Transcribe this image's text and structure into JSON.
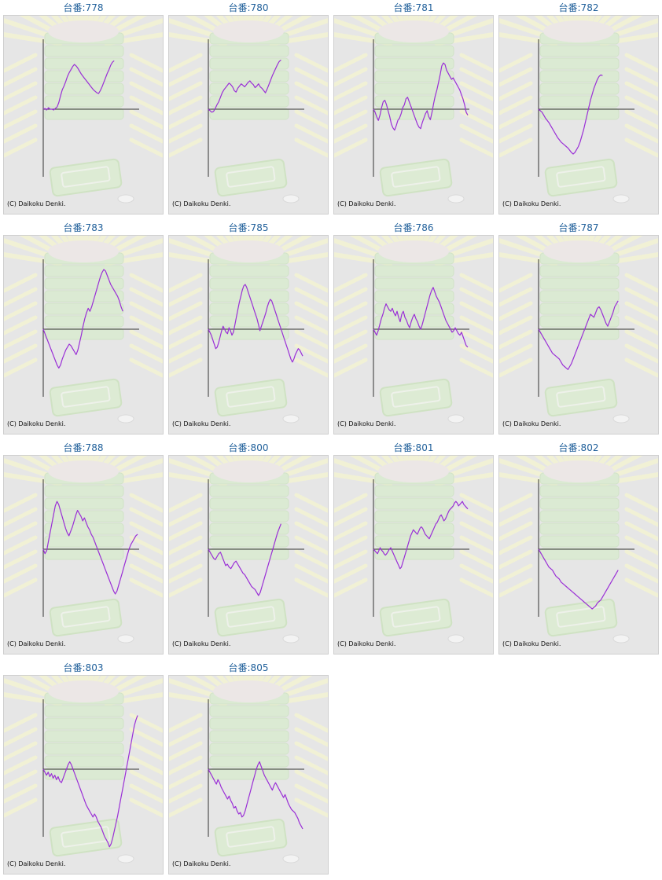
{
  "copyright": "(C) Daikoku Denki.",
  "colors": {
    "line": "#9a2fd6",
    "axis": "#333333",
    "title": "#1f5f9a",
    "panel": "#e6e6e6"
  },
  "chart_data": [
    {
      "type": "line",
      "title": "台番:778",
      "values": [
        0,
        1,
        -1,
        2,
        0,
        0,
        -1,
        1,
        3,
        9,
        18,
        26,
        31,
        37,
        44,
        49,
        53,
        57,
        60,
        58,
        55,
        51,
        47,
        44,
        41,
        38,
        35,
        32,
        29,
        26,
        24,
        22,
        21,
        25,
        30,
        36,
        42,
        48,
        53,
        59,
        63,
        65
      ]
    },
    {
      "type": "line",
      "title": "台番:780",
      "values": [
        0,
        -2,
        -4,
        -3,
        1,
        6,
        10,
        16,
        22,
        26,
        29,
        32,
        35,
        33,
        30,
        25,
        23,
        28,
        31,
        34,
        32,
        30,
        33,
        36,
        38,
        35,
        33,
        29,
        31,
        34,
        30,
        28,
        25,
        22,
        27,
        33,
        39,
        45,
        50,
        55,
        60,
        64,
        66
      ]
    },
    {
      "type": "line",
      "title": "台番:781",
      "values": [
        0,
        -4,
        -10,
        -15,
        -8,
        2,
        10,
        12,
        6,
        -2,
        -10,
        -20,
        -25,
        -28,
        -22,
        -15,
        -12,
        -6,
        2,
        6,
        14,
        16,
        10,
        4,
        -2,
        -8,
        -14,
        -20,
        -24,
        -26,
        -18,
        -12,
        -6,
        -2,
        -10,
        -14,
        -4,
        8,
        18,
        26,
        36,
        46,
        58,
        62,
        60,
        52,
        48,
        44,
        40,
        42,
        38,
        34,
        30,
        26,
        20,
        14,
        6,
        -4,
        -8
      ]
    },
    {
      "type": "line",
      "title": "台番:782",
      "values": [
        0,
        -2,
        -4,
        -8,
        -12,
        -15,
        -18,
        -22,
        -26,
        -30,
        -34,
        -38,
        -41,
        -44,
        -46,
        -48,
        -50,
        -52,
        -55,
        -58,
        -60,
        -58,
        -54,
        -50,
        -44,
        -36,
        -28,
        -18,
        -8,
        2,
        12,
        20,
        28,
        34,
        40,
        44,
        46,
        45
      ]
    },
    {
      "type": "line",
      "title": "台番:783",
      "values": [
        0,
        -6,
        -12,
        -18,
        -24,
        -30,
        -36,
        -42,
        -48,
        -52,
        -48,
        -40,
        -34,
        -28,
        -24,
        -20,
        -22,
        -26,
        -30,
        -34,
        -28,
        -18,
        -8,
        4,
        14,
        22,
        28,
        24,
        30,
        38,
        46,
        54,
        62,
        70,
        76,
        80,
        78,
        72,
        66,
        60,
        56,
        52,
        48,
        44,
        38,
        30,
        24
      ]
    },
    {
      "type": "line",
      "title": "台番:785",
      "values": [
        0,
        -4,
        -8,
        -14,
        -20,
        -26,
        -24,
        -18,
        -10,
        -2,
        4,
        0,
        -4,
        -6,
        2,
        -2,
        -8,
        -4,
        6,
        16,
        26,
        36,
        44,
        52,
        58,
        60,
        56,
        50,
        44,
        38,
        32,
        26,
        20,
        14,
        6,
        -2,
        4,
        10,
        16,
        22,
        30,
        36,
        40,
        38,
        32,
        26,
        20,
        14,
        8,
        2,
        -4,
        -10,
        -16,
        -22,
        -28,
        -34,
        -40,
        -44,
        -40,
        -34,
        -30,
        -26,
        -28,
        -32,
        -36
      ]
    },
    {
      "type": "line",
      "title": "台番:786",
      "values": [
        0,
        -4,
        -8,
        -2,
        6,
        14,
        20,
        28,
        34,
        30,
        26,
        24,
        28,
        22,
        18,
        24,
        16,
        10,
        20,
        24,
        16,
        12,
        6,
        2,
        10,
        16,
        20,
        14,
        10,
        4,
        0,
        6,
        14,
        22,
        30,
        38,
        46,
        52,
        56,
        50,
        44,
        40,
        36,
        30,
        24,
        18,
        12,
        8,
        4,
        0,
        -4,
        -2,
        2,
        -2,
        -6,
        -8,
        -4,
        -10,
        -16,
        -22,
        -24
      ]
    },
    {
      "type": "line",
      "title": "台番:787",
      "values": [
        0,
        -4,
        -8,
        -12,
        -16,
        -20,
        -24,
        -28,
        -32,
        -34,
        -36,
        -38,
        -40,
        -44,
        -48,
        -50,
        -52,
        -54,
        -50,
        -46,
        -40,
        -34,
        -28,
        -22,
        -16,
        -10,
        -4,
        2,
        8,
        14,
        20,
        18,
        16,
        22,
        28,
        30,
        26,
        20,
        14,
        8,
        4,
        10,
        16,
        22,
        30,
        34,
        38
      ]
    },
    {
      "type": "line",
      "title": "台番:788",
      "values": [
        0,
        -6,
        -2,
        10,
        22,
        34,
        46,
        58,
        64,
        60,
        52,
        44,
        36,
        28,
        22,
        18,
        24,
        30,
        38,
        46,
        52,
        48,
        44,
        38,
        42,
        36,
        30,
        26,
        20,
        16,
        10,
        4,
        -2,
        -8,
        -14,
        -20,
        -26,
        -32,
        -38,
        -44,
        -50,
        -56,
        -60,
        -56,
        -48,
        -40,
        -32,
        -24,
        -16,
        -8,
        0,
        6,
        10,
        14,
        18,
        20
      ]
    },
    {
      "type": "line",
      "title": "台番:800",
      "values": [
        0,
        -4,
        -8,
        -12,
        -14,
        -10,
        -6,
        -4,
        -10,
        -16,
        -22,
        -20,
        -24,
        -26,
        -22,
        -18,
        -16,
        -20,
        -24,
        -28,
        -32,
        -34,
        -38,
        -42,
        -46,
        -50,
        -52,
        -54,
        -58,
        -62,
        -58,
        -50,
        -42,
        -34,
        -26,
        -18,
        -10,
        -2,
        6,
        14,
        22,
        28,
        34
      ]
    },
    {
      "type": "line",
      "title": "台番:801",
      "values": [
        0,
        -2,
        -4,
        -6,
        -2,
        2,
        -1,
        -3,
        -6,
        -8,
        -6,
        -3,
        0,
        2,
        -2,
        -6,
        -10,
        -14,
        -18,
        -22,
        -26,
        -24,
        -18,
        -12,
        -6,
        0,
        6,
        12,
        18,
        22,
        26,
        24,
        22,
        20,
        24,
        28,
        30,
        28,
        24,
        20,
        18,
        16,
        14,
        18,
        22,
        26,
        30,
        34,
        36,
        40,
        44,
        46,
        42,
        38,
        40,
        44,
        48,
        52,
        54,
        56,
        58,
        62,
        64,
        62,
        58,
        60,
        62,
        64,
        60,
        58,
        56,
        54
      ]
    },
    {
      "type": "line",
      "title": "台番:802",
      "values": [
        0,
        -4,
        -8,
        -12,
        -16,
        -20,
        -24,
        -26,
        -28,
        -32,
        -36,
        -38,
        -40,
        -44,
        -46,
        -48,
        -50,
        -52,
        -54,
        -56,
        -58,
        -60,
        -62,
        -64,
        -66,
        -68,
        -70,
        -72,
        -74,
        -76,
        -78,
        -80,
        -78,
        -76,
        -72,
        -70,
        -68,
        -64,
        -60,
        -56,
        -52,
        -48,
        -44,
        -40,
        -36,
        -32,
        -28
      ]
    },
    {
      "type": "line",
      "title": "台番:803",
      "values": [
        0,
        -4,
        -8,
        -4,
        -10,
        -6,
        -12,
        -8,
        -14,
        -10,
        -16,
        -18,
        -12,
        -6,
        0,
        6,
        10,
        6,
        0,
        -6,
        -12,
        -18,
        -24,
        -30,
        -36,
        -42,
        -48,
        -52,
        -56,
        -60,
        -64,
        -60,
        -64,
        -70,
        -74,
        -78,
        -84,
        -90,
        -94,
        -98,
        -104,
        -100,
        -92,
        -82,
        -72,
        -62,
        -50,
        -38,
        -26,
        -14,
        -2,
        10,
        22,
        34,
        46,
        58,
        66,
        72
      ]
    },
    {
      "type": "line",
      "title": "台番:805",
      "values": [
        0,
        -4,
        -8,
        -12,
        -16,
        -20,
        -14,
        -18,
        -24,
        -28,
        -32,
        -36,
        -40,
        -36,
        -42,
        -46,
        -52,
        -50,
        -56,
        -60,
        -58,
        -64,
        -62,
        -56,
        -48,
        -40,
        -32,
        -24,
        -16,
        -8,
        0,
        6,
        10,
        4,
        -2,
        -8,
        -12,
        -16,
        -20,
        -24,
        -28,
        -22,
        -18,
        -22,
        -26,
        -30,
        -34,
        -38,
        -34,
        -40,
        -46,
        -50,
        -54,
        -56,
        -58,
        -62,
        -66,
        -72,
        -76,
        -80
      ]
    }
  ]
}
